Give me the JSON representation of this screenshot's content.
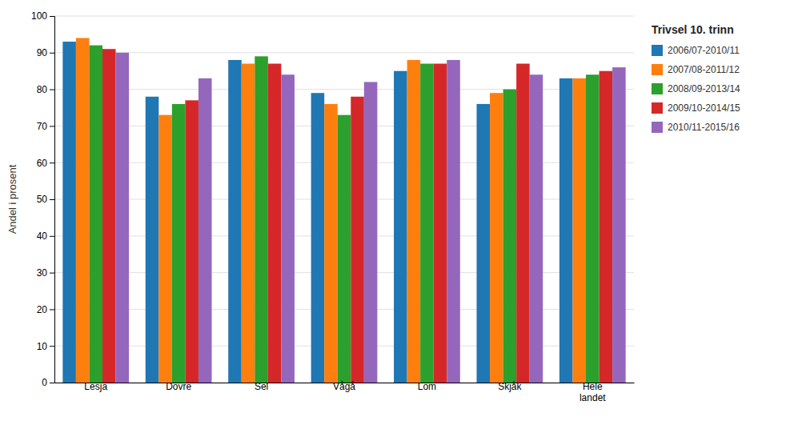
{
  "chart_data": {
    "type": "bar",
    "title": "Trivsel 10. trinn",
    "ylabel": "Andel i prosent",
    "categories": [
      "Lesja",
      "Dovre",
      "Sel",
      "Vågå",
      "Lom",
      "Skjåk",
      "Hele\nlandet"
    ],
    "series": [
      {
        "name": "2006/07-2010/11",
        "values": [
          93,
          78,
          88,
          79,
          85,
          76,
          83
        ]
      },
      {
        "name": "2007/08-2011/12",
        "values": [
          94,
          73,
          87,
          76,
          88,
          79,
          83
        ]
      },
      {
        "name": "2008/09-2013/14",
        "values": [
          92,
          76,
          89,
          73,
          87,
          80,
          84
        ]
      },
      {
        "name": "2009/10-2014/15",
        "values": [
          91,
          77,
          87,
          78,
          87,
          87,
          85
        ]
      },
      {
        "name": "2010/11-2015/16",
        "values": [
          90,
          83,
          84,
          82,
          88,
          84,
          86
        ]
      }
    ],
    "ylim": [
      0,
      100
    ],
    "yticks": [
      0,
      10,
      20,
      30,
      40,
      50,
      60,
      70,
      80,
      90,
      100
    ],
    "grid": true,
    "legend": "right"
  }
}
